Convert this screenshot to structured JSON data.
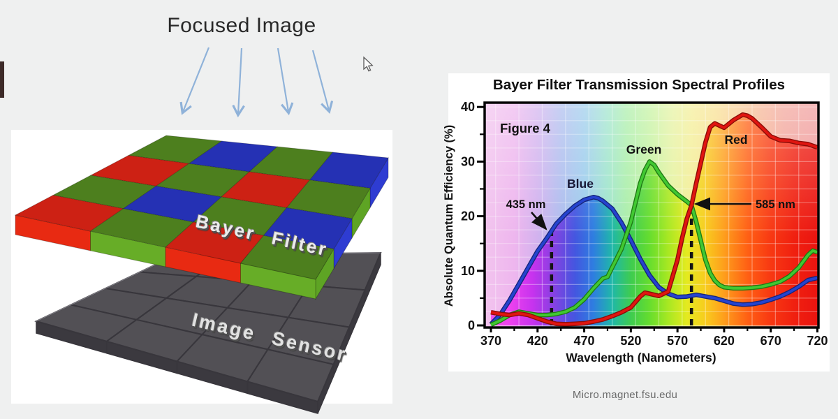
{
  "window": {
    "bg": "#eff0f0",
    "panel_bg": "#ffffff"
  },
  "slide": {
    "focused_image_label": "Focused Image",
    "bayer_filter_label": "Bayer Filter",
    "image_sensor_label": "Image Sensor",
    "arrow_color": "#8fb2d9",
    "filter_pattern": [
      [
        "G",
        "B",
        "G",
        "B"
      ],
      [
        "R",
        "G",
        "R",
        "G"
      ],
      [
        "G",
        "B",
        "G",
        "B"
      ],
      [
        "R",
        "G",
        "R",
        "G"
      ]
    ],
    "tile_colors": {
      "R": {
        "top": "#cd2114",
        "front": "#e82a12",
        "side": "#e23018"
      },
      "G": {
        "top": "#4d7f1e",
        "front": "#67ad27",
        "side": "#5ea424"
      },
      "B": {
        "top": "#2531b4",
        "front": "#2a38c8",
        "side": "#2e3cd2"
      }
    },
    "sensor_colors": {
      "top": "#525055",
      "front": "#3b393f",
      "seam": "#38363c",
      "rim": "#8a888e"
    }
  },
  "chart": {
    "title": "Bayer Filter Transmission Spectral Profiles",
    "figure_label": "Figure 4",
    "xlabel": "Wavelength (Nanometers)",
    "ylabel": "Absolute Quantum Efficiency (%)",
    "xticks": [
      370,
      420,
      470,
      520,
      570,
      620,
      670,
      720
    ],
    "yticks": [
      0,
      10,
      20,
      30,
      40
    ],
    "series_labels": {
      "blue": "Blue",
      "green": "Green",
      "red": "Red"
    },
    "label_color": "#111111",
    "bg_stops": [
      [
        363,
        "#f2c4ee"
      ],
      [
        395,
        "#eeb6ee"
      ],
      [
        420,
        "#d2b2ee"
      ],
      [
        445,
        "#aebcee"
      ],
      [
        470,
        "#9cccec"
      ],
      [
        495,
        "#9ee4cc"
      ],
      [
        515,
        "#aaeeaa"
      ],
      [
        540,
        "#c4f2a0"
      ],
      [
        565,
        "#e6f2a0"
      ],
      [
        585,
        "#f4ee96"
      ],
      [
        610,
        "#f8e090"
      ],
      [
        635,
        "#f8cc92"
      ],
      [
        660,
        "#f6b494"
      ],
      [
        685,
        "#f2a49a"
      ],
      [
        720,
        "#f09a9c"
      ]
    ],
    "fill_stops": [
      [
        363,
        "#ee5ae8"
      ],
      [
        390,
        "#ee42ee"
      ],
      [
        415,
        "#c633ee"
      ],
      [
        435,
        "#8c3fe2"
      ],
      [
        460,
        "#4456e0"
      ],
      [
        480,
        "#2e7ee0"
      ],
      [
        500,
        "#1fb8a8"
      ],
      [
        520,
        "#3ecc50"
      ],
      [
        540,
        "#66dd2e"
      ],
      [
        560,
        "#a8e822"
      ],
      [
        580,
        "#e4ea20"
      ],
      [
        600,
        "#f8cc1e"
      ],
      [
        620,
        "#fe9e1c"
      ],
      [
        645,
        "#ff6014"
      ],
      [
        670,
        "#f83812"
      ],
      [
        695,
        "#f02010"
      ],
      [
        720,
        "#ea1410"
      ]
    ]
  },
  "chart_data": {
    "type": "line",
    "title": "Bayer Filter Transmission Spectral Profiles",
    "xlabel": "Wavelength (Nanometers)",
    "ylabel": "Absolute Quantum Efficiency (%)",
    "xlim": [
      363,
      721
    ],
    "ylim": [
      0,
      41
    ],
    "grid": true,
    "series": [
      {
        "name": "Blue",
        "color": "#2543cf",
        "edge": "#15257a",
        "points": [
          [
            370,
            0.2
          ],
          [
            380,
            2
          ],
          [
            390,
            4.6
          ],
          [
            400,
            7.6
          ],
          [
            410,
            10.6
          ],
          [
            420,
            13.6
          ],
          [
            430,
            16
          ],
          [
            435,
            17.3
          ],
          [
            440,
            18.6
          ],
          [
            450,
            20.4
          ],
          [
            460,
            21.9
          ],
          [
            470,
            23
          ],
          [
            480,
            23.5
          ],
          [
            485,
            23.3
          ],
          [
            490,
            22.8
          ],
          [
            500,
            21.4
          ],
          [
            510,
            18.8
          ],
          [
            520,
            15.6
          ],
          [
            530,
            12.2
          ],
          [
            540,
            9.2
          ],
          [
            550,
            7
          ],
          [
            560,
            5.8
          ],
          [
            570,
            5.2
          ],
          [
            580,
            5.3
          ],
          [
            590,
            5.6
          ],
          [
            600,
            5.3
          ],
          [
            610,
            5
          ],
          [
            620,
            4.5
          ],
          [
            630,
            4
          ],
          [
            640,
            3.8
          ],
          [
            650,
            3.9
          ],
          [
            660,
            4.2
          ],
          [
            670,
            4.7
          ],
          [
            680,
            5.3
          ],
          [
            690,
            6.1
          ],
          [
            700,
            7.1
          ],
          [
            710,
            8.3
          ],
          [
            720,
            8.7
          ]
        ]
      },
      {
        "name": "Green",
        "color": "#41c832",
        "edge": "#1e7a14",
        "points": [
          [
            370,
            0.1
          ],
          [
            380,
            0.9
          ],
          [
            390,
            1.9
          ],
          [
            400,
            2.5
          ],
          [
            410,
            2.2
          ],
          [
            420,
            1.9
          ],
          [
            430,
            1.9
          ],
          [
            440,
            2.1
          ],
          [
            450,
            2.5
          ],
          [
            460,
            3.3
          ],
          [
            470,
            4.8
          ],
          [
            480,
            6.8
          ],
          [
            490,
            8.6
          ],
          [
            495,
            8.9
          ],
          [
            500,
            10.6
          ],
          [
            510,
            14
          ],
          [
            520,
            19
          ],
          [
            530,
            26
          ],
          [
            535,
            28.4
          ],
          [
            540,
            30
          ],
          [
            545,
            29.4
          ],
          [
            550,
            28
          ],
          [
            560,
            25.6
          ],
          [
            570,
            24
          ],
          [
            580,
            22.7
          ],
          [
            585,
            22
          ],
          [
            590,
            19
          ],
          [
            600,
            12
          ],
          [
            605,
            9.6
          ],
          [
            610,
            8.2
          ],
          [
            615,
            7.4
          ],
          [
            620,
            7
          ],
          [
            630,
            6.8
          ],
          [
            640,
            6.8
          ],
          [
            650,
            6.9
          ],
          [
            660,
            7.1
          ],
          [
            670,
            7.5
          ],
          [
            680,
            8
          ],
          [
            690,
            9
          ],
          [
            700,
            10.6
          ],
          [
            710,
            12.9
          ],
          [
            715,
            13.7
          ],
          [
            720,
            13.4
          ]
        ]
      },
      {
        "name": "Red",
        "color": "#e01510",
        "edge": "#8a0d08",
        "points": [
          [
            370,
            2.4
          ],
          [
            380,
            2.1
          ],
          [
            390,
            1.9
          ],
          [
            400,
            2.2
          ],
          [
            410,
            1.9
          ],
          [
            420,
            1.3
          ],
          [
            430,
            0.7
          ],
          [
            440,
            0.3
          ],
          [
            450,
            0.2
          ],
          [
            460,
            0.3
          ],
          [
            470,
            0.4
          ],
          [
            480,
            0.7
          ],
          [
            490,
            1.1
          ],
          [
            500,
            1.7
          ],
          [
            510,
            2.4
          ],
          [
            520,
            3.3
          ],
          [
            530,
            5.3
          ],
          [
            535,
            6
          ],
          [
            540,
            5.8
          ],
          [
            550,
            5.4
          ],
          [
            560,
            6.2
          ],
          [
            570,
            12
          ],
          [
            575,
            16
          ],
          [
            580,
            19.5
          ],
          [
            585,
            22
          ],
          [
            590,
            26
          ],
          [
            600,
            33.5
          ],
          [
            605,
            36.3
          ],
          [
            610,
            37
          ],
          [
            615,
            36.6
          ],
          [
            620,
            36.2
          ],
          [
            630,
            37.6
          ],
          [
            640,
            38.6
          ],
          [
            645,
            38.4
          ],
          [
            650,
            37.9
          ],
          [
            660,
            36.3
          ],
          [
            670,
            34.6
          ],
          [
            680,
            33.9
          ],
          [
            690,
            33.8
          ],
          [
            700,
            33.4
          ],
          [
            710,
            33.2
          ],
          [
            720,
            32.6
          ]
        ]
      }
    ],
    "annotations": [
      {
        "text": "435 nm",
        "x": 435,
        "line_top": 17.5
      },
      {
        "text": "585 nm",
        "x": 585,
        "line_top": 22.5
      }
    ]
  },
  "attribution": "Micro.magnet.fsu.edu"
}
